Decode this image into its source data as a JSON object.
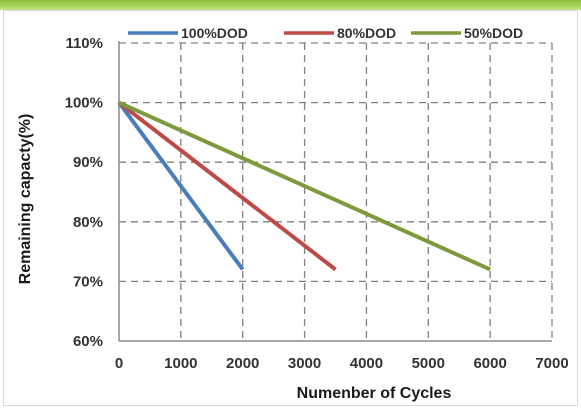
{
  "chart_data": {
    "type": "line",
    "title": "",
    "xlabel": "Numenber of Cycles",
    "ylabel": "Remaining capacty(%)",
    "xlim": [
      0,
      7000
    ],
    "ylim": [
      60,
      110
    ],
    "x_ticks": [
      "0",
      "1000",
      "2000",
      "3000",
      "4000",
      "5000",
      "6000",
      "7000"
    ],
    "y_ticks": [
      "60%",
      "70%",
      "80%",
      "90%",
      "100%",
      "110%"
    ],
    "grid": true,
    "legend_position": "top",
    "series": [
      {
        "name": "100%DOD",
        "color": "#4a7ebb",
        "points": [
          [
            0,
            100
          ],
          [
            2000,
            72
          ]
        ]
      },
      {
        "name": "80%DOD",
        "color": "#be4b48",
        "points": [
          [
            0,
            100
          ],
          [
            3500,
            72
          ]
        ]
      },
      {
        "name": "50%DOD",
        "color": "#7d9a3c",
        "points": [
          [
            0,
            100
          ],
          [
            6000,
            72
          ]
        ]
      }
    ]
  }
}
